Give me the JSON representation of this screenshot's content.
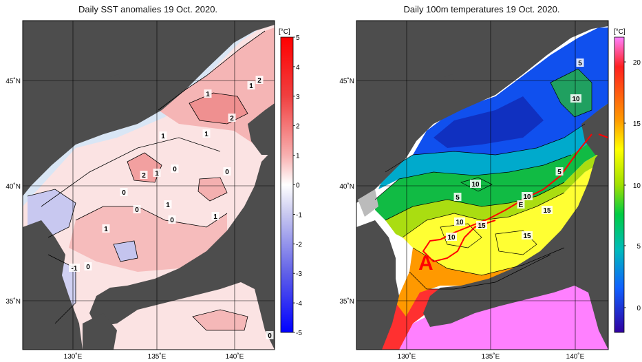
{
  "left": {
    "title": "Daily SST anomalies 19 Oct. 2020.",
    "unit": "[°C]",
    "colorbar_labels": [
      "5",
      "4",
      "3",
      "2",
      "1",
      "0",
      "-1",
      "-2",
      "-3",
      "-4",
      "-5"
    ],
    "lat_labels": [
      "45˚N",
      "40˚N",
      "35˚N"
    ],
    "lon_labels": [
      "130˚E",
      "135˚E",
      "140˚E"
    ],
    "contour_labels": [
      "2",
      "1",
      "1",
      "2",
      "1",
      "1",
      "0",
      "2",
      "1",
      "0",
      "1",
      "0",
      "1",
      "1",
      "0",
      "0",
      "-1",
      "0",
      "0"
    ]
  },
  "right": {
    "title": "Daily 100m temperatures 19 Oct. 2020.",
    "unit": "[°C]",
    "colorbar_labels": [
      "20",
      "15",
      "10",
      "5",
      "0"
    ],
    "lat_labels": [
      "45˚N",
      "40˚N",
      "35˚N"
    ],
    "lon_labels": [
      "130˚E",
      "135˚E",
      "140˚E"
    ],
    "contour_labels": [
      "5",
      "10",
      "5",
      "10",
      "5",
      "10",
      "15",
      "10",
      "15",
      "10",
      "15",
      "E"
    ],
    "region_label": "A"
  },
  "colors": {
    "land": "#4d4d4d",
    "anom_pos": "#f4a6a6",
    "anom_neg": "#b8b8ec",
    "bar_red": "#ff0000",
    "bar_blue": "#0000ff"
  }
}
